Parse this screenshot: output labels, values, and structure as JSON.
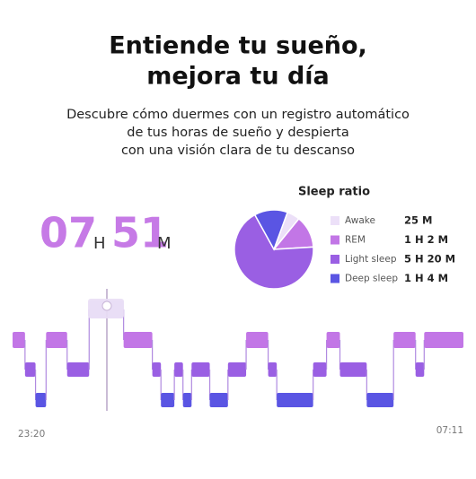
{
  "header": {
    "title_lines": [
      "Entiende tu sueño,",
      "mejora tu día"
    ],
    "subtitle_lines": [
      "Descubre cómo duermes con un registro automático",
      "de tus horas de sueño y despierta",
      "con una visión clara de tu descanso"
    ]
  },
  "summary": {
    "hours": "07",
    "hours_unit": "H",
    "minutes": "51",
    "minutes_unit": "M"
  },
  "chart_data": [
    {
      "type": "pie",
      "title": "Sleep ratio",
      "categories": [
        "Awake",
        "REM",
        "Light sleep",
        "Deep sleep"
      ],
      "values": [
        25,
        62,
        320,
        64
      ],
      "value_labels": [
        "25 M",
        "1 H 2 M",
        "5 H 20 M",
        "1 H 4 M"
      ],
      "colors": [
        "#ece0f8",
        "#c276e6",
        "#9a5fe3",
        "#5a55e3"
      ]
    },
    {
      "type": "hypnogram",
      "x_labels": [
        "23:20",
        "07:11"
      ],
      "durations": [
        13,
        11,
        11,
        22,
        23,
        36,
        30,
        9,
        14,
        9,
        9,
        19,
        19,
        19,
        23,
        9,
        38,
        14,
        14,
        28,
        28,
        23,
        9,
        41
      ],
      "stages": [
        1,
        2,
        3,
        1,
        2,
        0,
        1,
        2,
        3,
        2,
        3,
        2,
        3,
        2,
        1,
        2,
        3,
        2,
        1,
        2,
        3,
        1,
        2,
        1
      ]
    }
  ]
}
